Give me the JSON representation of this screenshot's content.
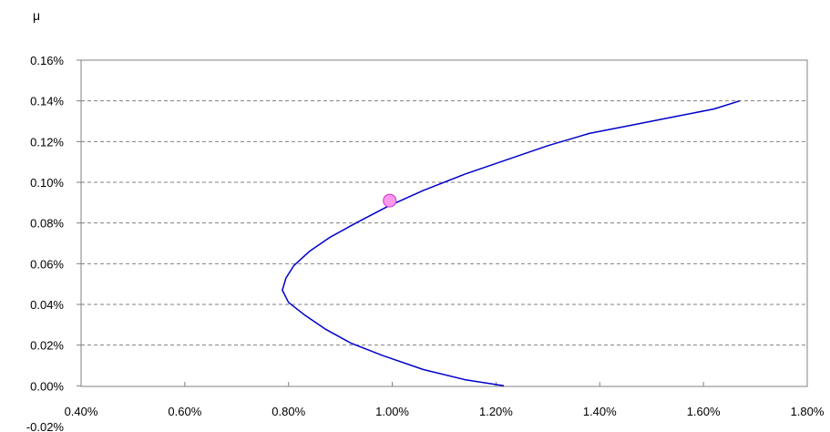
{
  "chart_data": {
    "type": "line",
    "title": "",
    "xlabel": "",
    "ylabel": "μ",
    "xlim": [
      0.004,
      0.018
    ],
    "ylim": [
      -0.0002,
      0.0016
    ],
    "x_ticks": [
      "0.40%",
      "0.60%",
      "0.80%",
      "1.00%",
      "1.20%",
      "1.40%",
      "1.60%",
      "1.80%"
    ],
    "y_ticks": [
      "0.16%",
      "0.14%",
      "0.12%",
      "0.10%",
      "0.08%",
      "0.06%",
      "0.04%",
      "0.02%",
      "0.00%",
      "-0.02%"
    ],
    "grid": "horizontal dashed",
    "legend": "none",
    "series": [
      {
        "x": [
          0.01215,
          0.0114,
          0.0106,
          0.0098,
          0.0092,
          0.0087,
          0.0083,
          0.008,
          0.00788,
          0.00795,
          0.0081,
          0.0084,
          0.0088,
          0.0093,
          0.0099,
          0.0106,
          0.0114,
          0.0122,
          0.013,
          0.0138,
          0.0146,
          0.0154,
          0.0162,
          0.0167
        ],
        "y": [
          0.0,
          3e-05,
          8e-05,
          0.00015,
          0.00021,
          0.00028,
          0.00035,
          0.00041,
          0.00047,
          0.00053,
          0.00059,
          0.00066,
          0.00073,
          0.0008,
          0.00088,
          0.00096,
          0.00104,
          0.00111,
          0.00118,
          0.00124,
          0.00128,
          0.00132,
          0.00136,
          0.0014
        ],
        "color": "#0000cc"
      }
    ],
    "marker": {
      "x": 0.00995,
      "y": 0.00091,
      "fill": "#ff99ee",
      "stroke": "#cc33cc"
    }
  }
}
